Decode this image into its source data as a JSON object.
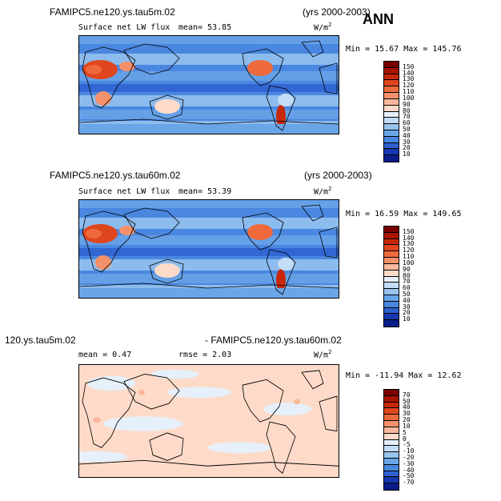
{
  "season": "ANN",
  "panels": [
    {
      "case_title": "FAMIPC5.ne120.ys.tau5m.02",
      "years": "(yrs 2000-2003)",
      "variable": "Surface net LW flux",
      "stat1": "mean=  53.85",
      "stat2": "",
      "units": "W/m",
      "units_exp": "2",
      "minmax": "Min =  15.67 Max = 145.76",
      "map_style": "field",
      "colorbar": {
        "labels": [
          "150",
          "140",
          "130",
          "120",
          "110",
          "100",
          "90",
          "80",
          "70",
          "60",
          "50",
          "40",
          "30",
          "20",
          "10"
        ],
        "colors": [
          "#7a0000",
          "#a81400",
          "#c8280a",
          "#e0461e",
          "#ee6a3c",
          "#f5916a",
          "#f9b89c",
          "#fddbc8",
          "#e6f0fb",
          "#c3ddf6",
          "#98c4f0",
          "#6aa5e8",
          "#4a87e0",
          "#2e62d0",
          "#1638b0",
          "#081c8a"
        ]
      }
    },
    {
      "case_title": "FAMIPC5.ne120.ys.tau60m.02",
      "years": "(yrs 2000-2003)",
      "variable": "Surface net LW flux",
      "stat1": "mean=  53.39",
      "stat2": "",
      "units": "W/m",
      "units_exp": "2",
      "minmax": "Min =  16.59 Max = 149.65",
      "map_style": "field",
      "colorbar": {
        "labels": [
          "150",
          "140",
          "130",
          "120",
          "110",
          "100",
          "90",
          "80",
          "70",
          "60",
          "50",
          "40",
          "30",
          "20",
          "10"
        ],
        "colors": [
          "#7a0000",
          "#a81400",
          "#c8280a",
          "#e0461e",
          "#ee6a3c",
          "#f5916a",
          "#f9b89c",
          "#fddbc8",
          "#e6f0fb",
          "#c3ddf6",
          "#98c4f0",
          "#6aa5e8",
          "#4a87e0",
          "#2e62d0",
          "#1638b0",
          "#081c8a"
        ]
      }
    },
    {
      "case_title": "120.ys.tau5m.02",
      "years": "- FAMIPC5.ne120.ys.tau60m.02",
      "variable": "",
      "stat1": "mean =   0.47",
      "stat2": "rmse =   2.03",
      "units": "W/m",
      "units_exp": "2",
      "minmax": "Min = -11.94 Max =  12.62",
      "map_style": "diff",
      "colorbar": {
        "labels": [
          "70",
          "50",
          "40",
          "30",
          "20",
          "10",
          "5",
          "0",
          "-5",
          "-10",
          "-20",
          "-30",
          "-40",
          "-50",
          "-70"
        ],
        "colors": [
          "#7a0000",
          "#a81400",
          "#c8280a",
          "#e0461e",
          "#ee6a3c",
          "#f5916a",
          "#f9b89c",
          "#fddbc8",
          "#e6f0fb",
          "#c3ddf6",
          "#98c4f0",
          "#6aa5e8",
          "#4a87e0",
          "#2e62d0",
          "#1638b0",
          "#081c8a"
        ]
      }
    }
  ]
}
